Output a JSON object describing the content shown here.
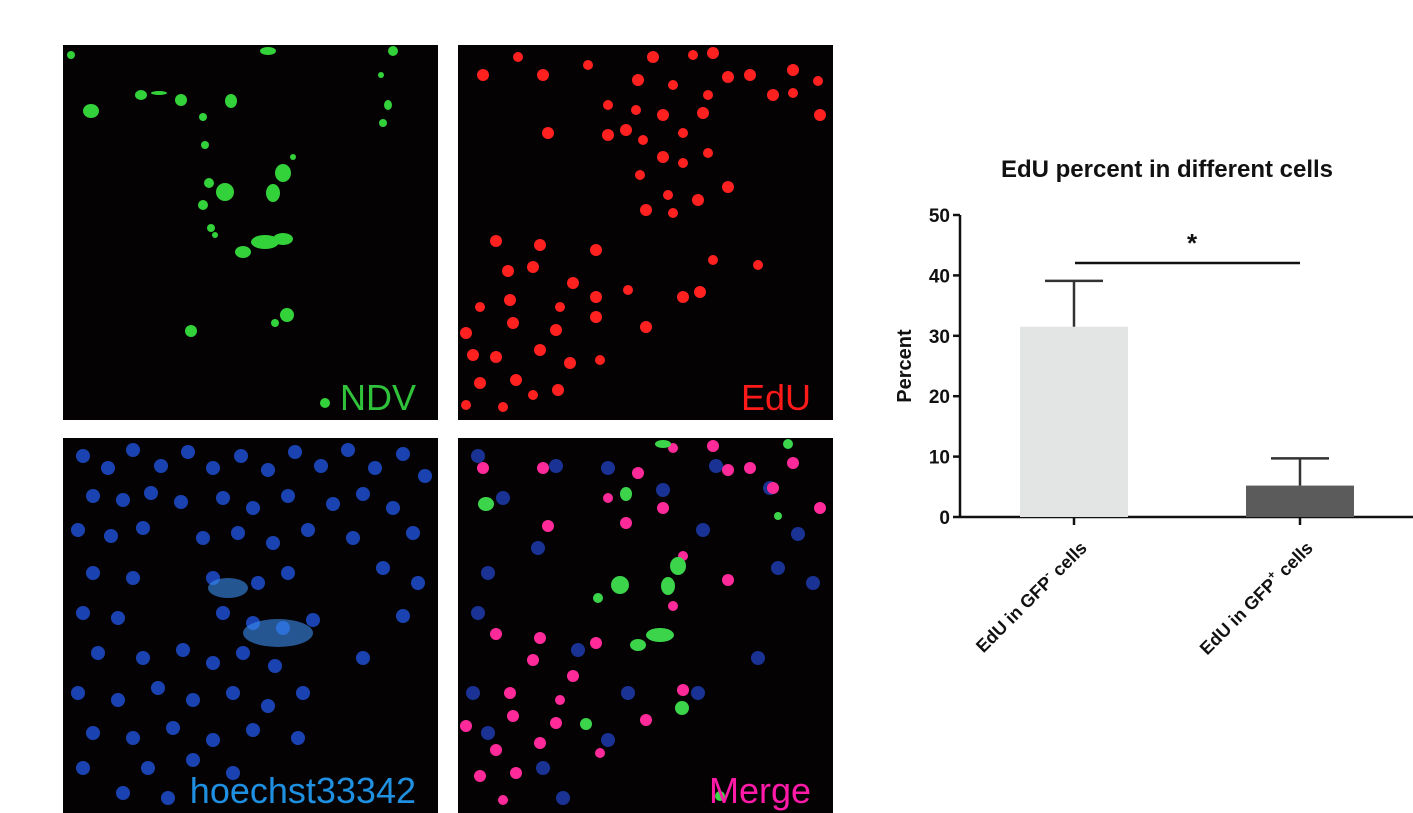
{
  "panels": {
    "ndv": {
      "label": "NDV",
      "color": "#2fc23a"
    },
    "edu": {
      "label": "EdU",
      "color": "#ff1a1a"
    },
    "hoechst": {
      "label": "hoechst33342",
      "color": "#1f8fe0"
    },
    "merge": {
      "label": "Merge",
      "color": "#ff1aa8"
    }
  },
  "chart_data": {
    "type": "bar",
    "title": "EdU percent in different cells",
    "ylabel": "Percent",
    "ylim": [
      0,
      50
    ],
    "yticks": [
      "0",
      "10",
      "20",
      "30",
      "40",
      "50"
    ],
    "categories": [
      {
        "base": "EdU in GFP",
        "sup": "-",
        "tail": " cells"
      },
      {
        "base": "EdU in GFP",
        "sup": "+",
        "tail": " cells"
      }
    ],
    "values": [
      31.5,
      5.2
    ],
    "errors": [
      7.6,
      4.5
    ],
    "bar_colors": [
      "#e3e5e4",
      "#5b5b5b"
    ],
    "significance": "*"
  }
}
